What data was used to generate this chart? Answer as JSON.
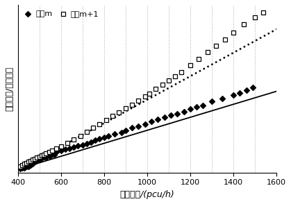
{
  "title": "",
  "xlabel": "交通流量/(pcu/h)",
  "ylabel": "车均延误/排队强度",
  "xlim": [
    400,
    1600
  ],
  "xticks": [
    400,
    600,
    800,
    1000,
    1200,
    1400,
    1600
  ],
  "series_m_x": [
    410,
    420,
    430,
    440,
    450,
    455,
    460,
    465,
    470,
    475,
    480,
    485,
    490,
    500,
    510,
    520,
    530,
    540,
    550,
    560,
    570,
    580,
    600,
    620,
    640,
    660,
    680,
    700,
    720,
    740,
    760,
    780,
    800,
    820,
    850,
    880,
    900,
    930,
    960,
    990,
    1020,
    1050,
    1080,
    1110,
    1140,
    1170,
    1200,
    1230,
    1260,
    1300,
    1350,
    1400,
    1430,
    1460,
    1490
  ],
  "series_m_y": [
    0.025,
    0.03,
    0.028,
    0.04,
    0.038,
    0.05,
    0.048,
    0.06,
    0.058,
    0.07,
    0.068,
    0.075,
    0.08,
    0.085,
    0.09,
    0.1,
    0.095,
    0.11,
    0.105,
    0.12,
    0.115,
    0.13,
    0.14,
    0.148,
    0.155,
    0.162,
    0.17,
    0.178,
    0.185,
    0.195,
    0.205,
    0.215,
    0.225,
    0.235,
    0.248,
    0.258,
    0.27,
    0.285,
    0.295,
    0.31,
    0.325,
    0.338,
    0.352,
    0.365,
    0.375,
    0.39,
    0.405,
    0.418,
    0.43,
    0.455,
    0.475,
    0.495,
    0.51,
    0.525,
    0.545
  ],
  "series_m1_x": [
    410,
    420,
    430,
    440,
    450,
    460,
    470,
    480,
    490,
    500,
    510,
    520,
    530,
    545,
    560,
    580,
    600,
    630,
    660,
    690,
    720,
    750,
    780,
    810,
    840,
    870,
    900,
    930,
    960,
    990,
    1010,
    1040,
    1070,
    1100,
    1130,
    1160,
    1200,
    1240,
    1280,
    1320,
    1360,
    1400,
    1450,
    1500,
    1540
  ],
  "series_m1_y": [
    0.04,
    0.048,
    0.055,
    0.062,
    0.068,
    0.075,
    0.082,
    0.088,
    0.095,
    0.1,
    0.108,
    0.115,
    0.122,
    0.13,
    0.14,
    0.155,
    0.168,
    0.188,
    0.21,
    0.235,
    0.26,
    0.285,
    0.31,
    0.335,
    0.36,
    0.385,
    0.41,
    0.435,
    0.46,
    0.488,
    0.505,
    0.535,
    0.562,
    0.59,
    0.615,
    0.642,
    0.685,
    0.725,
    0.768,
    0.808,
    0.848,
    0.895,
    0.945,
    0.99,
    1.02
  ],
  "trend_m_slope": 0.000415,
  "trend_m_intercept": -0.145,
  "trend_m1_slope": 0.00075,
  "trend_m1_intercept": -0.285,
  "legend_label_m": "方案m",
  "legend_label_m1": "方案m+1",
  "marker_color_m": "#000000",
  "marker_color_m1": "#000000",
  "bg_color": "#ffffff",
  "grid_color": "#aaaaaa",
  "font_size_label": 9,
  "font_size_tick": 8,
  "font_size_legend": 8
}
